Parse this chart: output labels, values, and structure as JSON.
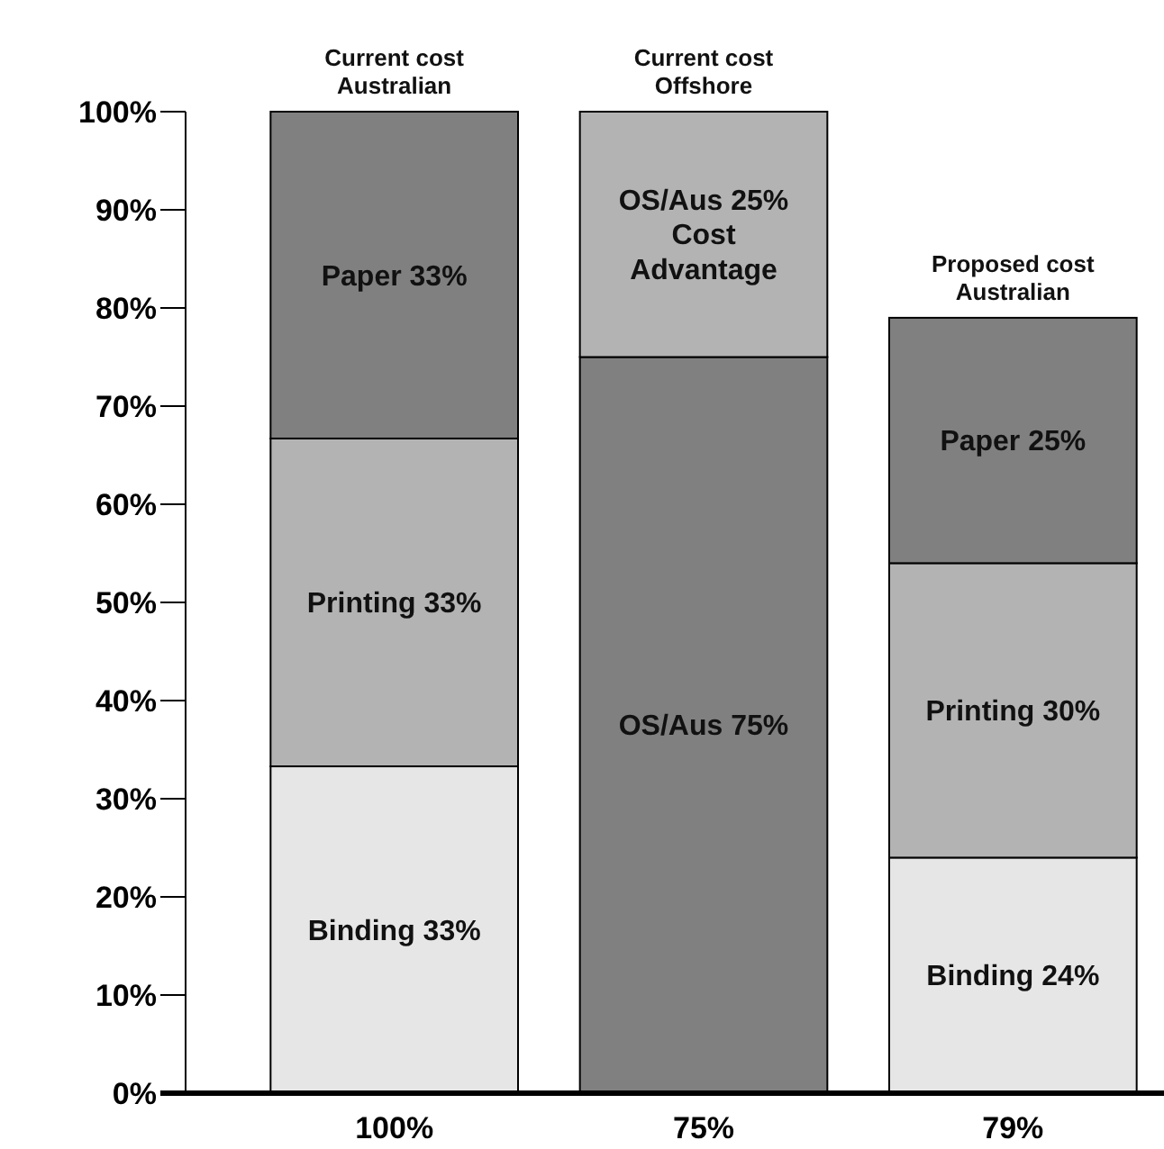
{
  "chart_data": {
    "type": "bar",
    "stacked": true,
    "categories": [
      "100%",
      "75%",
      "79%"
    ],
    "series": [
      {
        "colors": [
          "#e6e6e6",
          "#808080",
          "#e6e6e6"
        ],
        "values": [
          33.3,
          75,
          24
        ],
        "value_labels": [
          "Binding 33%",
          "OS/Aus 75%",
          "Binding 24%"
        ]
      },
      {
        "color": "#b3b3b3",
        "values": [
          33.4,
          25,
          30
        ],
        "value_labels": [
          "Printing 33%",
          "OS/Aus 25%\nCost\nAdvantage",
          "Printing 30%"
        ]
      },
      {
        "color": "#808080",
        "values": [
          33.3,
          null,
          25
        ],
        "value_labels": [
          "Paper 33%",
          null,
          "Paper 25%"
        ]
      }
    ],
    "annotations": [
      {
        "text": "Current cost\nAustralian",
        "x": "100%",
        "y": 100
      },
      {
        "text": "Current cost\nOffshore",
        "x": "75%",
        "y": 100
      },
      {
        "text": "Proposed cost\nAustralian",
        "x": "79%",
        "y": 79
      }
    ],
    "ylim": [
      0,
      100
    ],
    "yticks": [
      {
        "value": 0,
        "label": "0%"
      },
      {
        "value": 10,
        "label": "10%"
      },
      {
        "value": 20,
        "label": "20%"
      },
      {
        "value": 30,
        "label": "30%"
      },
      {
        "value": 40,
        "label": "40%"
      },
      {
        "value": 50,
        "label": "50%"
      },
      {
        "value": 60,
        "label": "60%"
      },
      {
        "value": 70,
        "label": "70%"
      },
      {
        "value": 80,
        "label": "80%"
      },
      {
        "value": 90,
        "label": "90%"
      },
      {
        "value": 100,
        "label": "100%"
      }
    ],
    "grid": false
  }
}
